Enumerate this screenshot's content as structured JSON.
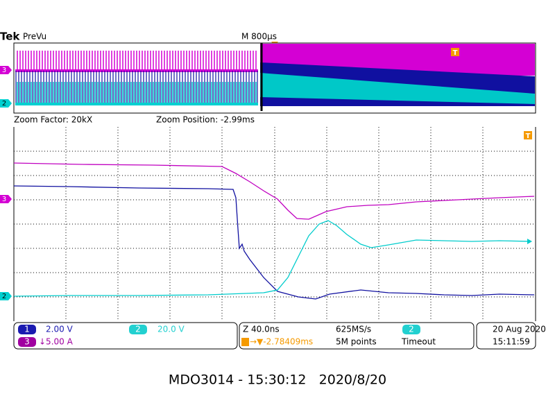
{
  "header": {
    "brand": "Tek",
    "mode": "PreVu",
    "timebase": "M 800µs"
  },
  "zoom": {
    "factor": "Zoom Factor: 20kX",
    "position": "Zoom Position: -2.99ms"
  },
  "markers": {
    "ch3": "3",
    "ch2": "2",
    "trigger": "T"
  },
  "channels": [
    {
      "badge": "1",
      "scale": "2.00 V"
    },
    {
      "badge": "2",
      "scale": "20.0 V"
    },
    {
      "badge": "3",
      "scale": "↓5.00 A"
    }
  ],
  "acquisition": {
    "zoom_time": "Z 40.0ns",
    "sample_rate": "625MS/s",
    "trigger_position": "→▼-2.78409ms",
    "record_length": "5M points",
    "trigger_source": "2",
    "trigger_mode": "Timeout"
  },
  "datetime": {
    "date": "20 Aug 2020",
    "time": "15:11:59"
  },
  "caption": "MDO3014 - 15:30:12   2020/8/20"
}
